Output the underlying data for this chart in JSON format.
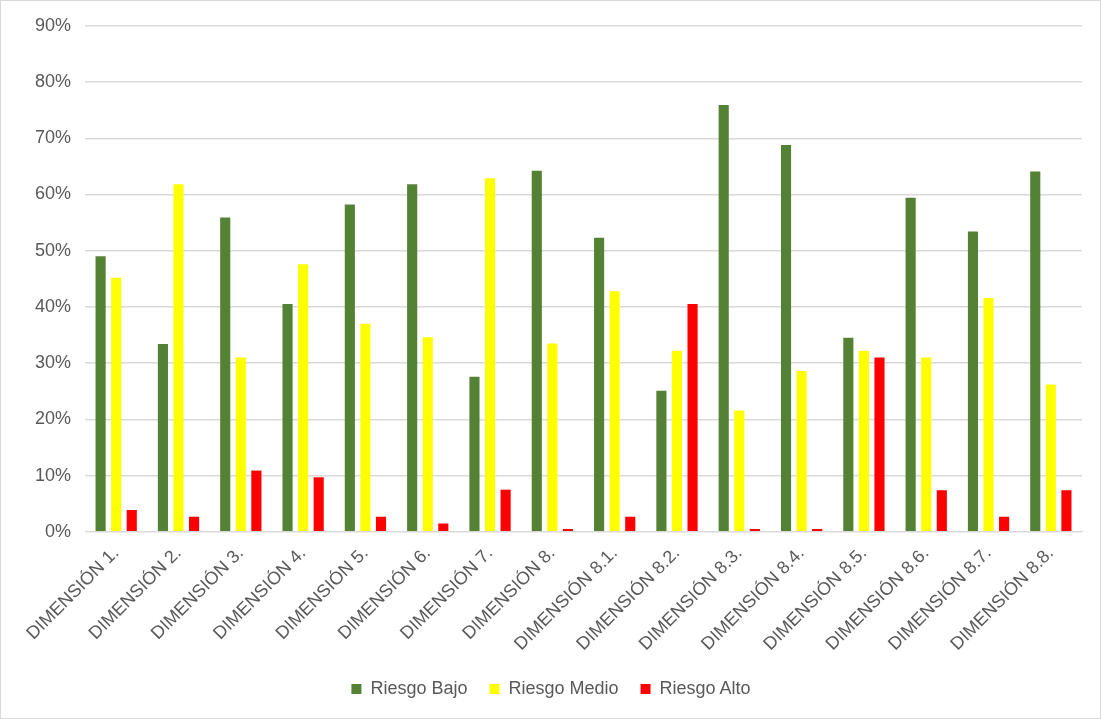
{
  "chart_data": {
    "type": "bar",
    "categories": [
      "DIMENSIÓN 1.",
      "DIMENSIÓN 2.",
      "DIMENSIÓN 3.",
      "DIMENSIÓN 4.",
      "DIMENSIÓN 5.",
      "DIMENSIÓN 6.",
      "DIMENSIÓN 7.",
      "DIMENSIÓN 8.",
      "DIMENSIÓN 8.1.",
      "DIMENSIÓN 8.2.",
      "DIMENSIÓN 8.3.",
      "DIMENSIÓN 8.4.",
      "DIMENSIÓN 8.5.",
      "DIMENSIÓN 8.6.",
      "DIMENSIÓN 8.7.",
      "DIMENSIÓN 8.8."
    ],
    "series": [
      {
        "name": "Riesgo Bajo",
        "color": "#548235",
        "values": [
          49,
          33.4,
          55.9,
          40.5,
          58.2,
          61.8,
          27.6,
          64.2,
          52.3,
          25.1,
          75.9,
          68.8,
          34.5,
          59.4,
          53.4,
          64.1
        ]
      },
      {
        "name": "Riesgo Medio",
        "color": "#ffff00",
        "values": [
          45.2,
          61.8,
          31,
          47.6,
          37,
          34.6,
          62.9,
          33.5,
          42.8,
          32.2,
          21.6,
          28.6,
          32.2,
          31,
          41.6,
          26.2
        ]
      },
      {
        "name": "Riesgo Alto",
        "color": "#ff0000",
        "values": [
          3.9,
          2.7,
          10.9,
          9.7,
          2.7,
          1.5,
          7.5,
          0.5,
          2.7,
          40.5,
          0.5,
          0.5,
          31,
          7.4,
          2.7,
          7.4
        ]
      }
    ],
    "ylim": [
      0,
      90
    ],
    "yticks": [
      {
        "value": 0,
        "label": "0%"
      },
      {
        "value": 10,
        "label": "10%"
      },
      {
        "value": 20,
        "label": "20%"
      },
      {
        "value": 30,
        "label": "30%"
      },
      {
        "value": 40,
        "label": "40%"
      },
      {
        "value": 50,
        "label": "50%"
      },
      {
        "value": 60,
        "label": "60%"
      },
      {
        "value": 70,
        "label": "70%"
      },
      {
        "value": 80,
        "label": "80%"
      },
      {
        "value": 90,
        "label": "90%"
      }
    ],
    "grid": "y",
    "legend": "bottom"
  }
}
